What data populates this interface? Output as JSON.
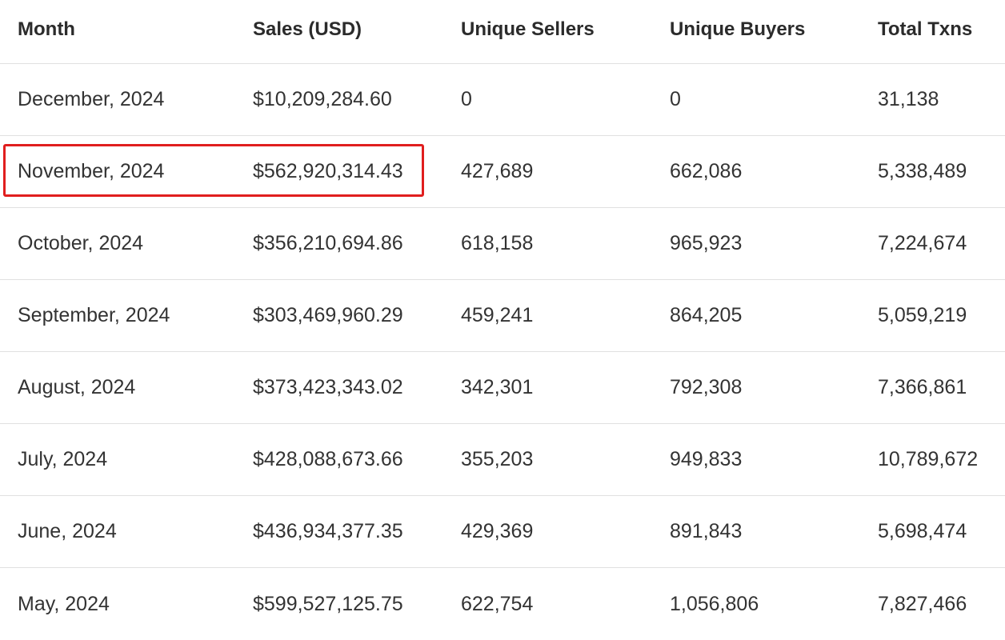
{
  "table": {
    "headers": [
      "Month",
      "Sales (USD)",
      "Unique Sellers",
      "Unique Buyers",
      "Total Txns"
    ],
    "rows": [
      [
        "December, 2024",
        "$10,209,284.60",
        "0",
        "0",
        "31,138"
      ],
      [
        "November, 2024",
        "$562,920,314.43",
        "427,689",
        "662,086",
        "5,338,489"
      ],
      [
        "October, 2024",
        "$356,210,694.86",
        "618,158",
        "965,923",
        "7,224,674"
      ],
      [
        "September, 2024",
        "$303,469,960.29",
        "459,241",
        "864,205",
        "5,059,219"
      ],
      [
        "August, 2024",
        "$373,423,343.02",
        "342,301",
        "792,308",
        "7,366,861"
      ],
      [
        "July, 2024",
        "$428,088,673.66",
        "355,203",
        "949,833",
        "10,789,672"
      ],
      [
        "June, 2024",
        "$436,934,377.35",
        "429,369",
        "891,843",
        "5,698,474"
      ],
      [
        "May, 2024",
        "$599,527,125.75",
        "622,754",
        "1,056,806",
        "7,827,466"
      ]
    ]
  },
  "highlight": {
    "row_index": 1,
    "color": "#e01e1e"
  },
  "colors": {
    "text": "#333333",
    "border": "#e0e0e0"
  }
}
